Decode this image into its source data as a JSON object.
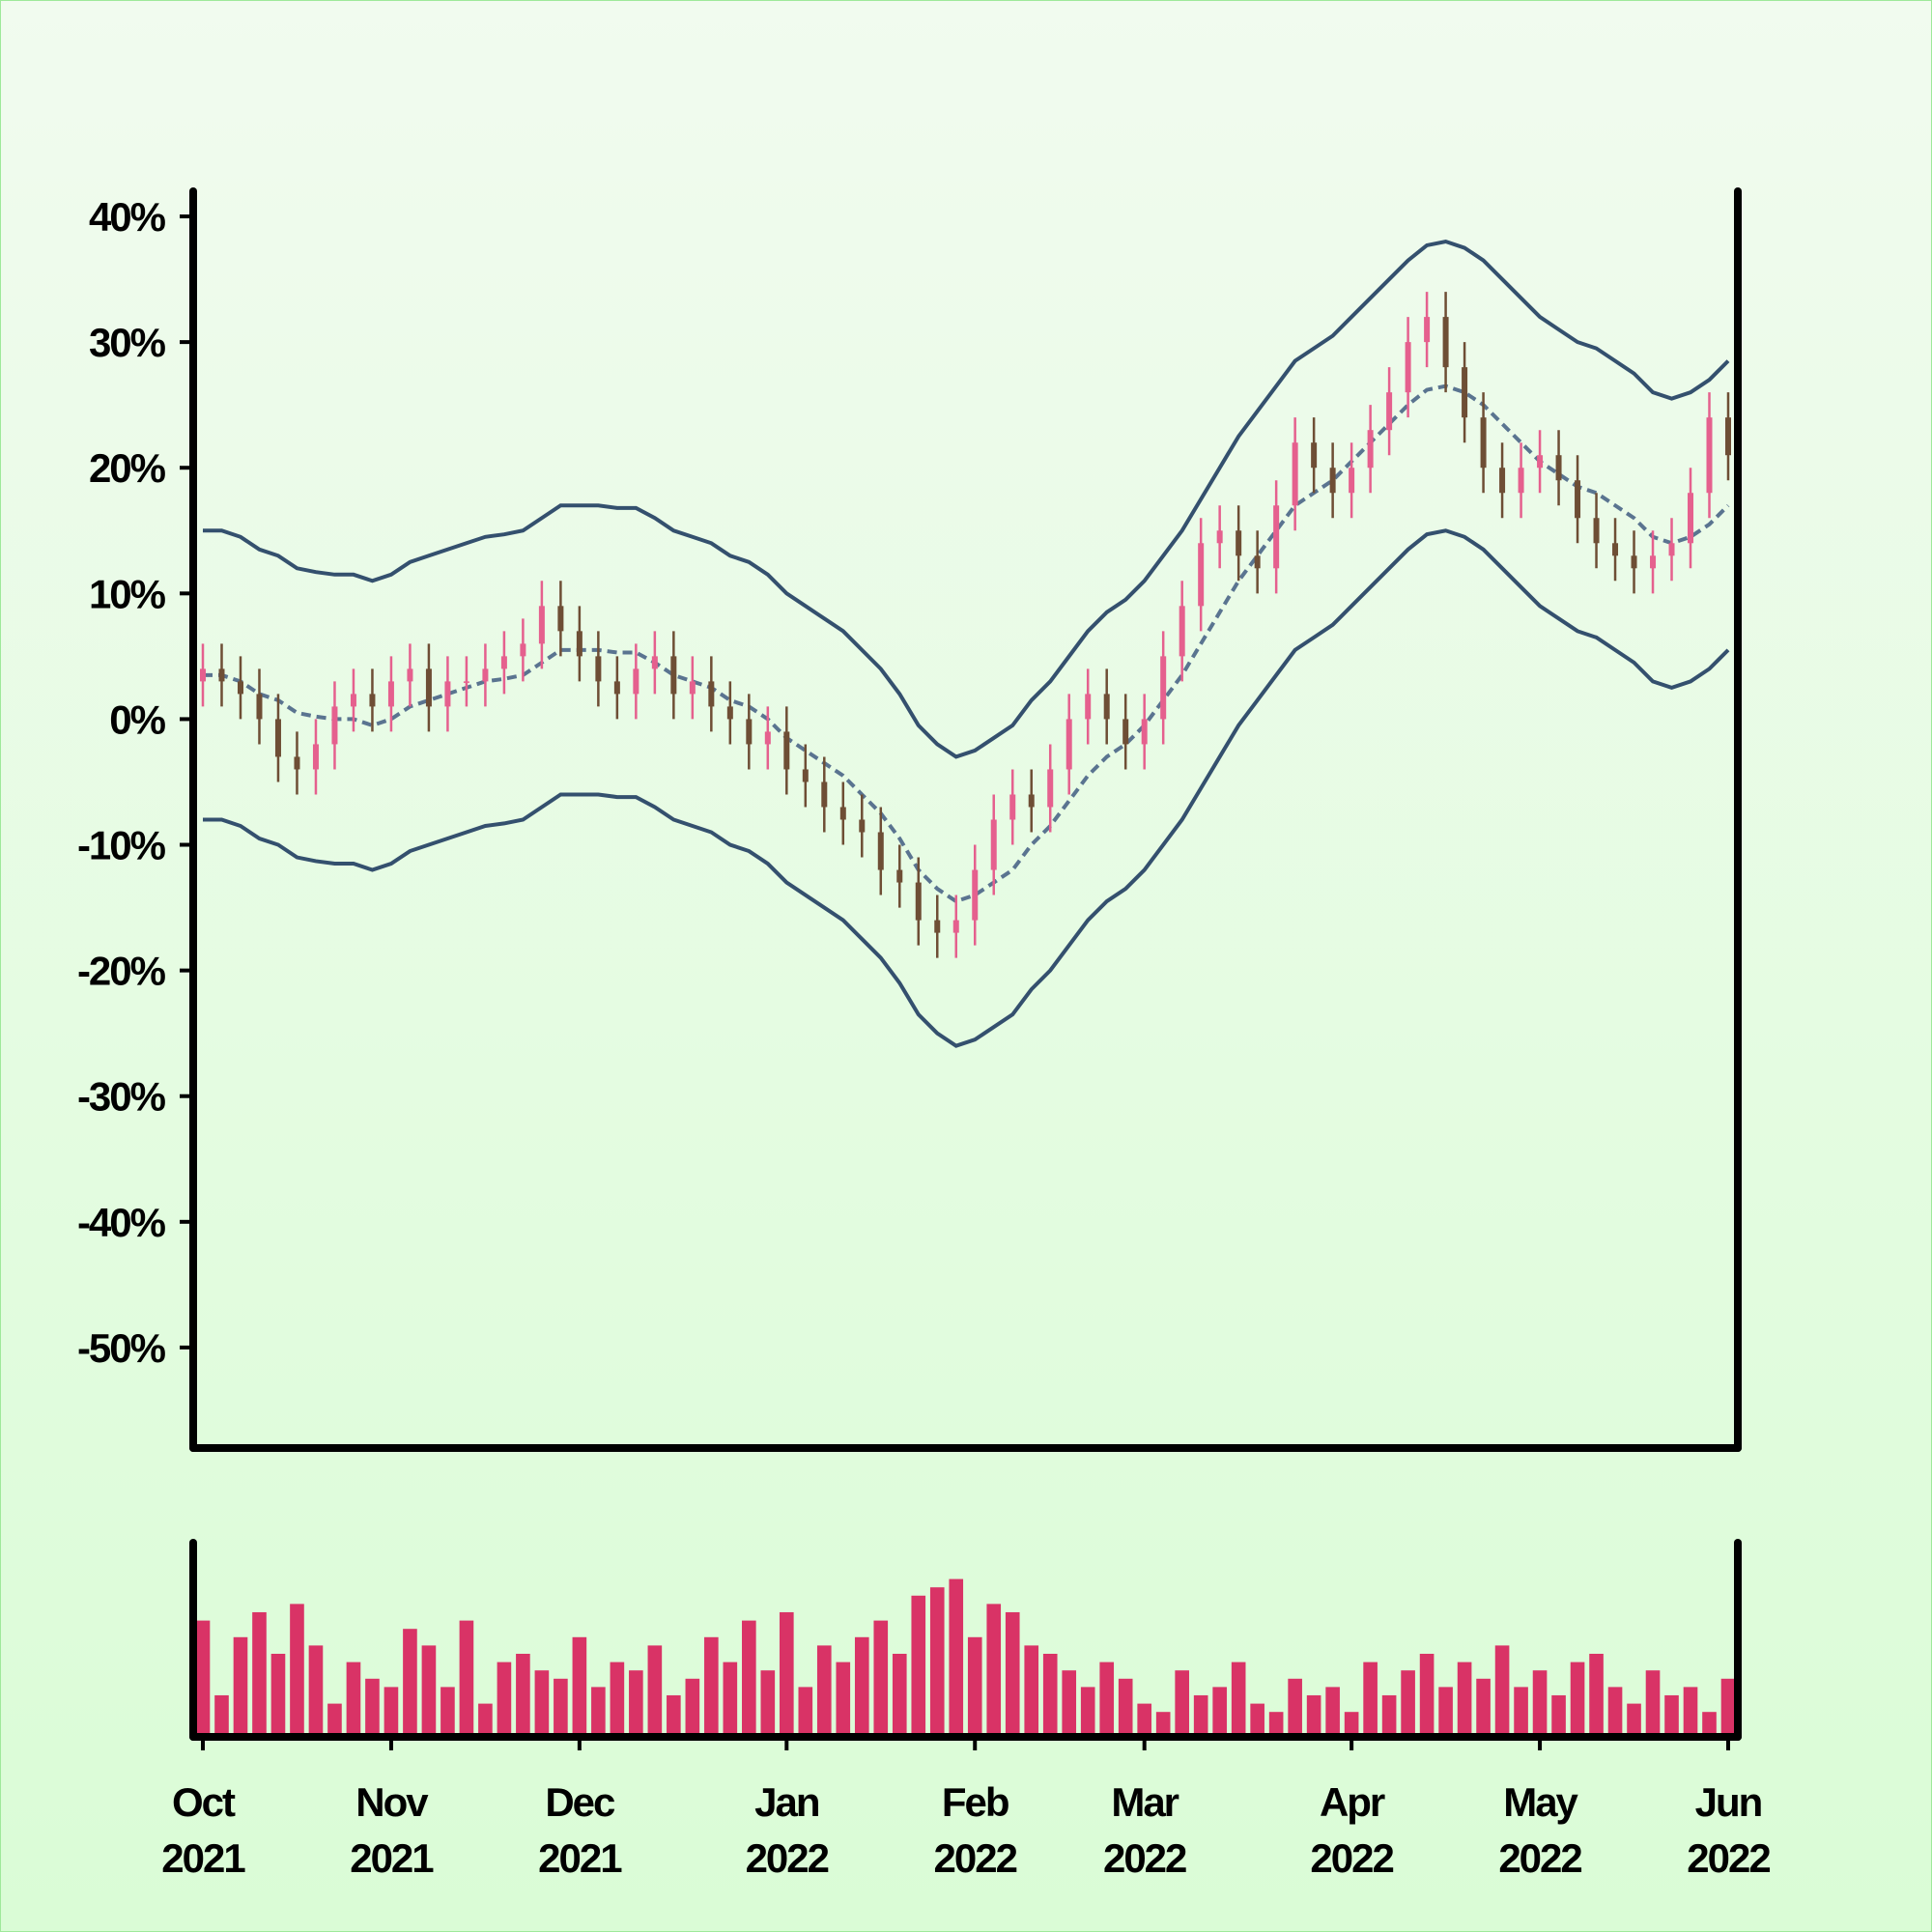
{
  "chart_data": {
    "type": "ohlc",
    "categories": [
      "Oct 2021",
      null,
      null,
      null,
      null,
      null,
      null,
      null,
      null,
      null,
      "Nov 2021",
      null,
      null,
      null,
      null,
      null,
      null,
      null,
      null,
      null,
      "Dec 2021",
      null,
      null,
      null,
      null,
      null,
      null,
      null,
      null,
      null,
      null,
      "Jan 2022",
      null,
      null,
      null,
      null,
      null,
      null,
      null,
      null,
      null,
      "Feb 2022",
      null,
      null,
      null,
      null,
      null,
      null,
      null,
      null,
      "Mar 2022",
      null,
      null,
      null,
      null,
      null,
      null,
      null,
      null,
      null,
      null,
      "Apr 2022",
      null,
      null,
      null,
      null,
      null,
      null,
      null,
      null,
      null,
      "May 2022",
      null,
      null,
      null,
      null,
      null,
      null,
      null,
      null,
      null,
      "Jun 2022"
    ],
    "open": [
      3,
      4,
      3,
      2,
      0,
      -3,
      -4,
      -2,
      1,
      2,
      1,
      3,
      4,
      1,
      3,
      3,
      4,
      5,
      6,
      9,
      7,
      5,
      3,
      2,
      4,
      5,
      2,
      3,
      1,
      0,
      -2,
      -1,
      -4,
      -5,
      -7,
      -8,
      -9,
      -12,
      -13,
      -16,
      -17,
      -16,
      -12,
      -8,
      -6,
      -7,
      -4,
      0,
      2,
      0,
      -2,
      0,
      5,
      9,
      14,
      15,
      13,
      12,
      17,
      22,
      20,
      18,
      20,
      23,
      26,
      30,
      32,
      28,
      24,
      20,
      18,
      20,
      21,
      19,
      16,
      14,
      13,
      12,
      13,
      14,
      18,
      24
    ],
    "high": [
      6,
      6,
      5,
      4,
      2,
      -1,
      0,
      3,
      4,
      4,
      5,
      6,
      6,
      5,
      5,
      6,
      7,
      8,
      11,
      11,
      9,
      7,
      5,
      6,
      7,
      7,
      5,
      5,
      3,
      2,
      1,
      1,
      -2,
      -3,
      -5,
      -6,
      -7,
      -10,
      -11,
      -14,
      -14,
      -10,
      -6,
      -4,
      -4,
      -2,
      2,
      4,
      4,
      2,
      2,
      7,
      11,
      16,
      17,
      17,
      15,
      19,
      24,
      24,
      22,
      22,
      25,
      28,
      32,
      34,
      34,
      30,
      26,
      22,
      22,
      23,
      23,
      21,
      18,
      16,
      15,
      15,
      16,
      20,
      26,
      26
    ],
    "low": [
      1,
      1,
      0,
      -2,
      -5,
      -6,
      -6,
      -4,
      -1,
      -1,
      -1,
      1,
      -1,
      -1,
      1,
      1,
      2,
      3,
      4,
      5,
      3,
      1,
      0,
      0,
      2,
      0,
      0,
      -1,
      -2,
      -4,
      -4,
      -6,
      -7,
      -9,
      -10,
      -11,
      -14,
      -15,
      -18,
      -19,
      -19,
      -18,
      -14,
      -10,
      -9,
      -9,
      -6,
      -2,
      -2,
      -4,
      -4,
      -2,
      3,
      7,
      12,
      11,
      10,
      10,
      15,
      18,
      16,
      16,
      18,
      21,
      24,
      28,
      26,
      22,
      18,
      16,
      16,
      18,
      17,
      14,
      12,
      11,
      10,
      10,
      11,
      12,
      16,
      19
    ],
    "close": [
      4,
      3,
      2,
      0,
      -3,
      -4,
      -2,
      1,
      2,
      1,
      3,
      4,
      1,
      3,
      3,
      4,
      5,
      6,
      9,
      7,
      5,
      3,
      2,
      4,
      5,
      2,
      3,
      1,
      0,
      -2,
      -1,
      -4,
      -5,
      -7,
      -8,
      -9,
      -12,
      -13,
      -16,
      -17,
      -16,
      -12,
      -8,
      -6,
      -7,
      -4,
      0,
      2,
      0,
      -2,
      0,
      5,
      9,
      14,
      15,
      13,
      12,
      17,
      22,
      20,
      18,
      20,
      23,
      26,
      30,
      32,
      28,
      24,
      20,
      18,
      20,
      21,
      19,
      16,
      14,
      13,
      12,
      13,
      14,
      18,
      24,
      21
    ],
    "volume": [
      70,
      25,
      60,
      75,
      50,
      80,
      55,
      20,
      45,
      35,
      30,
      65,
      55,
      30,
      70,
      20,
      45,
      50,
      40,
      35,
      60,
      30,
      45,
      40,
      55,
      25,
      35,
      60,
      45,
      70,
      40,
      75,
      30,
      55,
      45,
      60,
      70,
      50,
      85,
      90,
      95,
      60,
      80,
      75,
      55,
      50,
      40,
      30,
      45,
      35,
      20,
      15,
      40,
      25,
      30,
      45,
      20,
      15,
      35,
      25,
      30,
      15,
      45,
      25,
      40,
      50,
      30,
      45,
      35,
      55,
      30,
      40,
      25,
      45,
      50,
      30,
      20,
      40,
      25,
      30,
      15,
      35
    ],
    "upper_band": [
      15,
      15,
      14.5,
      13.5,
      13,
      12,
      11.7,
      11.5,
      11.5,
      11,
      11.5,
      12.5,
      13,
      13.5,
      14,
      14.5,
      14.7,
      15,
      16,
      17,
      17,
      17,
      16.8,
      16.8,
      16,
      15,
      14.5,
      14,
      13,
      12.5,
      11.5,
      10,
      9,
      8,
      7,
      5.5,
      4,
      2,
      -0.5,
      -2,
      -3,
      -2.5,
      -1.5,
      -0.5,
      1.5,
      3,
      5,
      7,
      8.5,
      9.5,
      11,
      13,
      15,
      17.5,
      20,
      22.5,
      24.5,
      26.5,
      28.5,
      29.5,
      30.5,
      32,
      33.5,
      35,
      36.5,
      37.7,
      38,
      37.5,
      36.5,
      35,
      33.5,
      32,
      31,
      30,
      29.5,
      28.5,
      27.5,
      26,
      25.5,
      26,
      27,
      28.5
    ],
    "middle_band": [
      3.5,
      3.5,
      3,
      2,
      1.5,
      0.5,
      0.2,
      0,
      0,
      -0.5,
      0,
      1,
      1.5,
      2,
      2.5,
      3,
      3.2,
      3.5,
      4.5,
      5.5,
      5.5,
      5.5,
      5.3,
      5.3,
      4.5,
      3.5,
      3,
      2.5,
      1.5,
      1,
      0,
      -1.5,
      -2.5,
      -3.5,
      -4.5,
      -6,
      -7.5,
      -9.5,
      -12,
      -13.5,
      -14.5,
      -14,
      -13,
      -12,
      -10,
      -8.5,
      -6.5,
      -4.5,
      -3,
      -2,
      -0.5,
      1.5,
      3.5,
      6,
      8.5,
      11,
      13,
      15,
      17,
      18,
      19,
      20.5,
      22,
      23.5,
      25,
      26.2,
      26.5,
      26,
      25,
      23.5,
      22,
      20.5,
      19.5,
      18.5,
      18,
      17,
      16,
      14.5,
      14,
      14.5,
      15.5,
      17
    ],
    "lower_band": [
      -8,
      -8,
      -8.5,
      -9.5,
      -10,
      -11,
      -11.3,
      -11.5,
      -11.5,
      -12,
      -11.5,
      -10.5,
      -10,
      -9.5,
      -9,
      -8.5,
      -8.3,
      -8,
      -7,
      -6,
      -6,
      -6,
      -6.2,
      -6.2,
      -7,
      -8,
      -8.5,
      -9,
      -10,
      -10.5,
      -11.5,
      -13,
      -14,
      -15,
      -16,
      -17.5,
      -19,
      -21,
      -23.5,
      -25,
      -26,
      -25.5,
      -24.5,
      -23.5,
      -21.5,
      -20,
      -18,
      -16,
      -14.5,
      -13.5,
      -12,
      -10,
      -8,
      -5.5,
      -3,
      -0.5,
      1.5,
      3.5,
      5.5,
      6.5,
      7.5,
      9,
      10.5,
      12,
      13.5,
      14.7,
      15,
      14.5,
      13.5,
      12,
      10.5,
      9,
      8,
      7,
      6.5,
      5.5,
      4.5,
      3,
      2.5,
      3,
      4,
      5.5
    ],
    "ylim": [
      -58,
      42
    ],
    "yticks": [
      {
        "value": -50,
        "label": "-50%"
      },
      {
        "value": -40,
        "label": "-40%"
      },
      {
        "value": -30,
        "label": "-30%"
      },
      {
        "value": -20,
        "label": "-20%"
      },
      {
        "value": -10,
        "label": "-10%"
      },
      {
        "value": 0,
        "label": "0%"
      },
      {
        "value": 10,
        "label": "10%"
      },
      {
        "value": 20,
        "label": "20%"
      },
      {
        "value": 30,
        "label": "30%"
      },
      {
        "value": 40,
        "label": "40%"
      }
    ],
    "y2lim": [
      0,
      100
    ],
    "up_color": "#e5608e",
    "down_color": "#6e4e35",
    "band_color": "#34506e",
    "middle_color": "#5a7490",
    "volume_color": "#d93366"
  }
}
